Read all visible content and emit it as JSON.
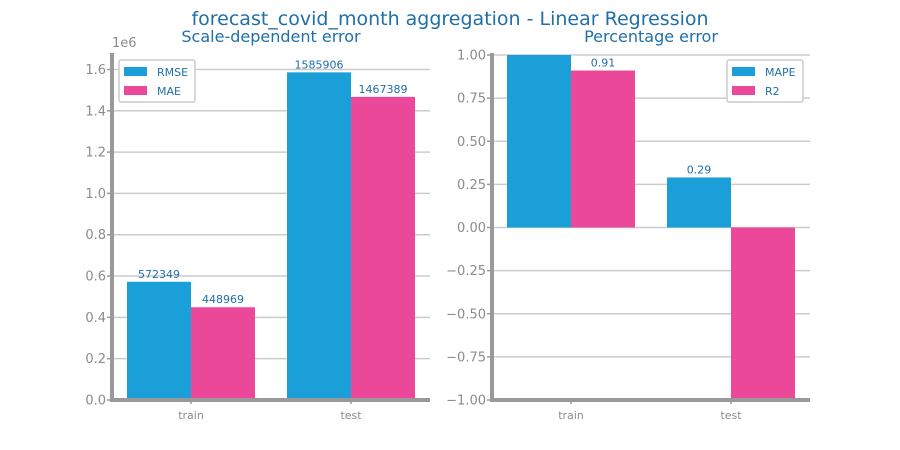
{
  "figure": {
    "title": "forecast_covid_month aggregation - Linear Regression",
    "title_color": "#1f6fa8"
  },
  "colors": {
    "series_a": "#1a9fd8",
    "series_b": "#eb4899",
    "text": "#1f6fa8",
    "axis": "#999999",
    "grid": "#cccccc"
  },
  "chart_data": [
    {
      "type": "bar",
      "title": "Scale-dependent error",
      "categories": [
        "train",
        "test"
      ],
      "series": [
        {
          "name": "RMSE",
          "values": [
            572349,
            1585906
          ],
          "labels": [
            "572349",
            "1585906"
          ]
        },
        {
          "name": "MAE",
          "values": [
            448969,
            1467389
          ],
          "labels": [
            "448969",
            "1467389"
          ]
        }
      ],
      "ylim": [
        0,
        1670000
      ],
      "yticks": [
        0,
        200000,
        400000,
        600000,
        800000,
        1000000,
        1200000,
        1400000,
        1600000
      ],
      "ytick_labels": [
        "0.0",
        "0.2",
        "0.4",
        "0.6",
        "0.8",
        "1.0",
        "1.2",
        "1.4",
        "1.6"
      ],
      "offset_label": "1e6",
      "grid": true,
      "legend": "top-left"
    },
    {
      "type": "bar",
      "title": "Percentage error",
      "categories": [
        "train",
        "test"
      ],
      "series": [
        {
          "name": "MAPE",
          "values": [
            1.0,
            0.29
          ],
          "labels": [
            "",
            "0.29"
          ]
        },
        {
          "name": "R2",
          "values": [
            0.91,
            -1.0
          ],
          "labels": [
            "0.91",
            ""
          ]
        }
      ],
      "ylim": [
        -1.0,
        1.0
      ],
      "yticks": [
        -1.0,
        -0.75,
        -0.5,
        -0.25,
        0.0,
        0.25,
        0.5,
        0.75,
        1.0
      ],
      "ytick_labels": [
        "−1.00",
        "−0.75",
        "−0.50",
        "−0.25",
        "0.00",
        "0.25",
        "0.50",
        "0.75",
        "1.00"
      ],
      "grid": true,
      "legend": "top-right"
    }
  ]
}
